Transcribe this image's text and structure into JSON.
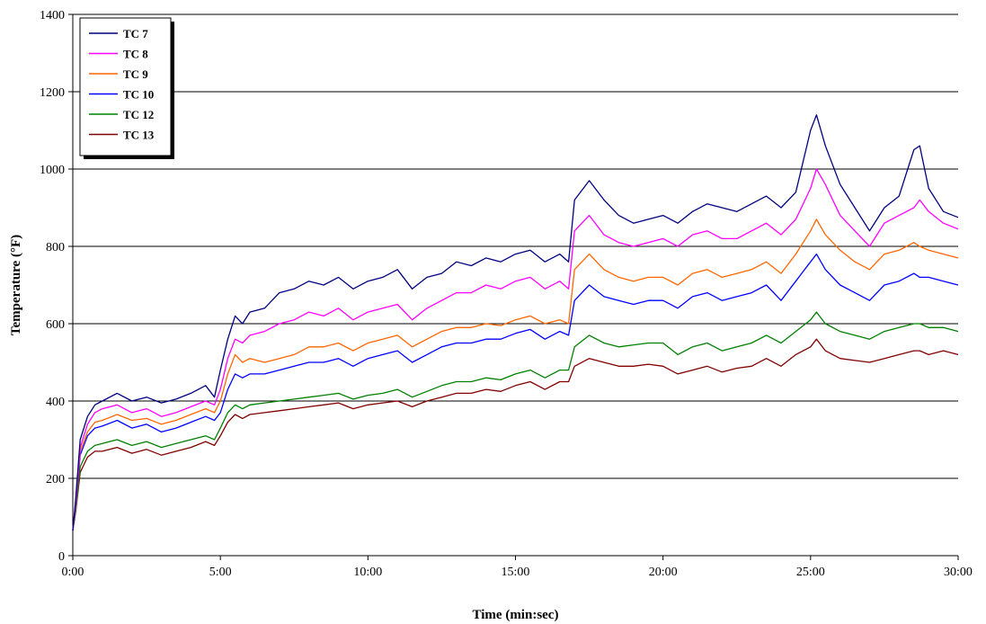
{
  "chart_data": {
    "type": "line",
    "xlabel": "Time (min:sec)",
    "ylabel": "Temperature (°F)",
    "xlim": [
      0,
      30
    ],
    "ylim": [
      0,
      1400
    ],
    "x_ticks": [
      {
        "value": 0,
        "label": "0:00"
      },
      {
        "value": 5,
        "label": "5:00"
      },
      {
        "value": 10,
        "label": "10:00"
      },
      {
        "value": 15,
        "label": "15:00"
      },
      {
        "value": 20,
        "label": "20:00"
      },
      {
        "value": 25,
        "label": "25:00"
      },
      {
        "value": 30,
        "label": "30:00"
      }
    ],
    "y_ticks": [
      0,
      200,
      400,
      600,
      800,
      1000,
      1200,
      1400
    ],
    "grid": "horizontal",
    "legend_position": "top-left",
    "x": [
      0,
      0.1,
      0.25,
      0.5,
      0.75,
      1,
      1.5,
      2,
      2.5,
      3,
      3.5,
      4,
      4.5,
      4.8,
      5,
      5.25,
      5.5,
      5.75,
      6,
      6.5,
      7,
      7.5,
      8,
      8.5,
      9,
      9.5,
      10,
      10.5,
      11,
      11.5,
      12,
      12.5,
      13,
      13.5,
      14,
      14.5,
      15,
      15.5,
      16,
      16.5,
      16.8,
      17,
      17.5,
      18,
      18.5,
      19,
      19.5,
      20,
      20.5,
      21,
      21.5,
      22,
      22.5,
      23,
      23.5,
      24,
      24.5,
      25,
      25.2,
      25.5,
      26,
      26.5,
      27,
      27.5,
      28,
      28.5,
      28.7,
      29,
      29.5,
      30
    ],
    "series": [
      {
        "name": "TC 7",
        "color": "#000080",
        "values": [
          65,
          150,
          300,
          360,
          390,
          400,
          420,
          400,
          410,
          395,
          405,
          420,
          440,
          410,
          480,
          560,
          620,
          600,
          630,
          640,
          680,
          690,
          710,
          700,
          720,
          690,
          710,
          720,
          740,
          690,
          720,
          730,
          760,
          750,
          770,
          760,
          780,
          790,
          760,
          780,
          760,
          920,
          970,
          920,
          880,
          860,
          870,
          880,
          860,
          890,
          910,
          900,
          890,
          910,
          930,
          900,
          940,
          1100,
          1140,
          1060,
          960,
          900,
          840,
          900,
          930,
          1050,
          1060,
          950,
          890,
          875
        ]
      },
      {
        "name": "TC 8",
        "color": "#FF00FF",
        "values": [
          65,
          140,
          280,
          340,
          370,
          380,
          390,
          370,
          380,
          360,
          370,
          385,
          400,
          390,
          430,
          510,
          560,
          550,
          570,
          580,
          600,
          610,
          630,
          620,
          640,
          610,
          630,
          640,
          650,
          610,
          640,
          660,
          680,
          680,
          700,
          690,
          710,
          720,
          690,
          710,
          690,
          840,
          880,
          830,
          810,
          800,
          810,
          820,
          800,
          830,
          840,
          820,
          820,
          840,
          860,
          830,
          870,
          950,
          1000,
          960,
          880,
          840,
          800,
          860,
          880,
          900,
          920,
          890,
          860,
          845
        ]
      },
      {
        "name": "TC 9",
        "color": "#FF6600",
        "values": [
          65,
          135,
          270,
          320,
          345,
          350,
          365,
          350,
          355,
          340,
          350,
          365,
          380,
          370,
          400,
          470,
          520,
          500,
          510,
          500,
          510,
          520,
          540,
          540,
          550,
          530,
          550,
          560,
          570,
          540,
          560,
          580,
          590,
          590,
          600,
          595,
          610,
          620,
          600,
          610,
          600,
          740,
          780,
          740,
          720,
          710,
          720,
          720,
          700,
          730,
          740,
          720,
          730,
          740,
          760,
          730,
          780,
          840,
          870,
          830,
          790,
          760,
          740,
          780,
          790,
          810,
          800,
          790,
          780,
          770
        ]
      },
      {
        "name": "TC 10",
        "color": "#0000FF",
        "values": [
          65,
          130,
          260,
          310,
          330,
          335,
          350,
          330,
          340,
          320,
          330,
          345,
          360,
          350,
          370,
          430,
          470,
          460,
          470,
          470,
          480,
          490,
          500,
          500,
          510,
          490,
          510,
          520,
          530,
          500,
          520,
          540,
          550,
          550,
          560,
          560,
          575,
          585,
          560,
          580,
          570,
          660,
          700,
          670,
          660,
          650,
          660,
          660,
          640,
          670,
          680,
          660,
          670,
          680,
          700,
          660,
          710,
          760,
          780,
          740,
          700,
          680,
          660,
          700,
          710,
          730,
          720,
          720,
          710,
          700
        ]
      },
      {
        "name": "TC 12",
        "color": "#008000",
        "values": [
          65,
          120,
          230,
          270,
          285,
          290,
          300,
          285,
          295,
          280,
          290,
          300,
          310,
          300,
          330,
          370,
          390,
          380,
          390,
          395,
          400,
          405,
          410,
          415,
          420,
          405,
          415,
          420,
          430,
          410,
          425,
          440,
          450,
          450,
          460,
          455,
          470,
          480,
          460,
          480,
          480,
          540,
          570,
          550,
          540,
          545,
          550,
          550,
          520,
          540,
          550,
          530,
          540,
          550,
          570,
          550,
          580,
          610,
          630,
          600,
          580,
          570,
          560,
          580,
          590,
          600,
          600,
          590,
          590,
          580
        ]
      },
      {
        "name": "TC 13",
        "color": "#800000",
        "values": [
          65,
          115,
          215,
          255,
          270,
          270,
          280,
          265,
          275,
          260,
          270,
          280,
          295,
          285,
          310,
          345,
          365,
          355,
          365,
          370,
          375,
          380,
          385,
          390,
          395,
          380,
          390,
          395,
          400,
          385,
          400,
          410,
          420,
          420,
          430,
          425,
          440,
          450,
          430,
          450,
          450,
          490,
          510,
          500,
          490,
          490,
          495,
          490,
          470,
          480,
          490,
          475,
          485,
          490,
          510,
          490,
          520,
          540,
          560,
          530,
          510,
          505,
          500,
          510,
          520,
          530,
          530,
          520,
          530,
          520
        ]
      }
    ]
  }
}
